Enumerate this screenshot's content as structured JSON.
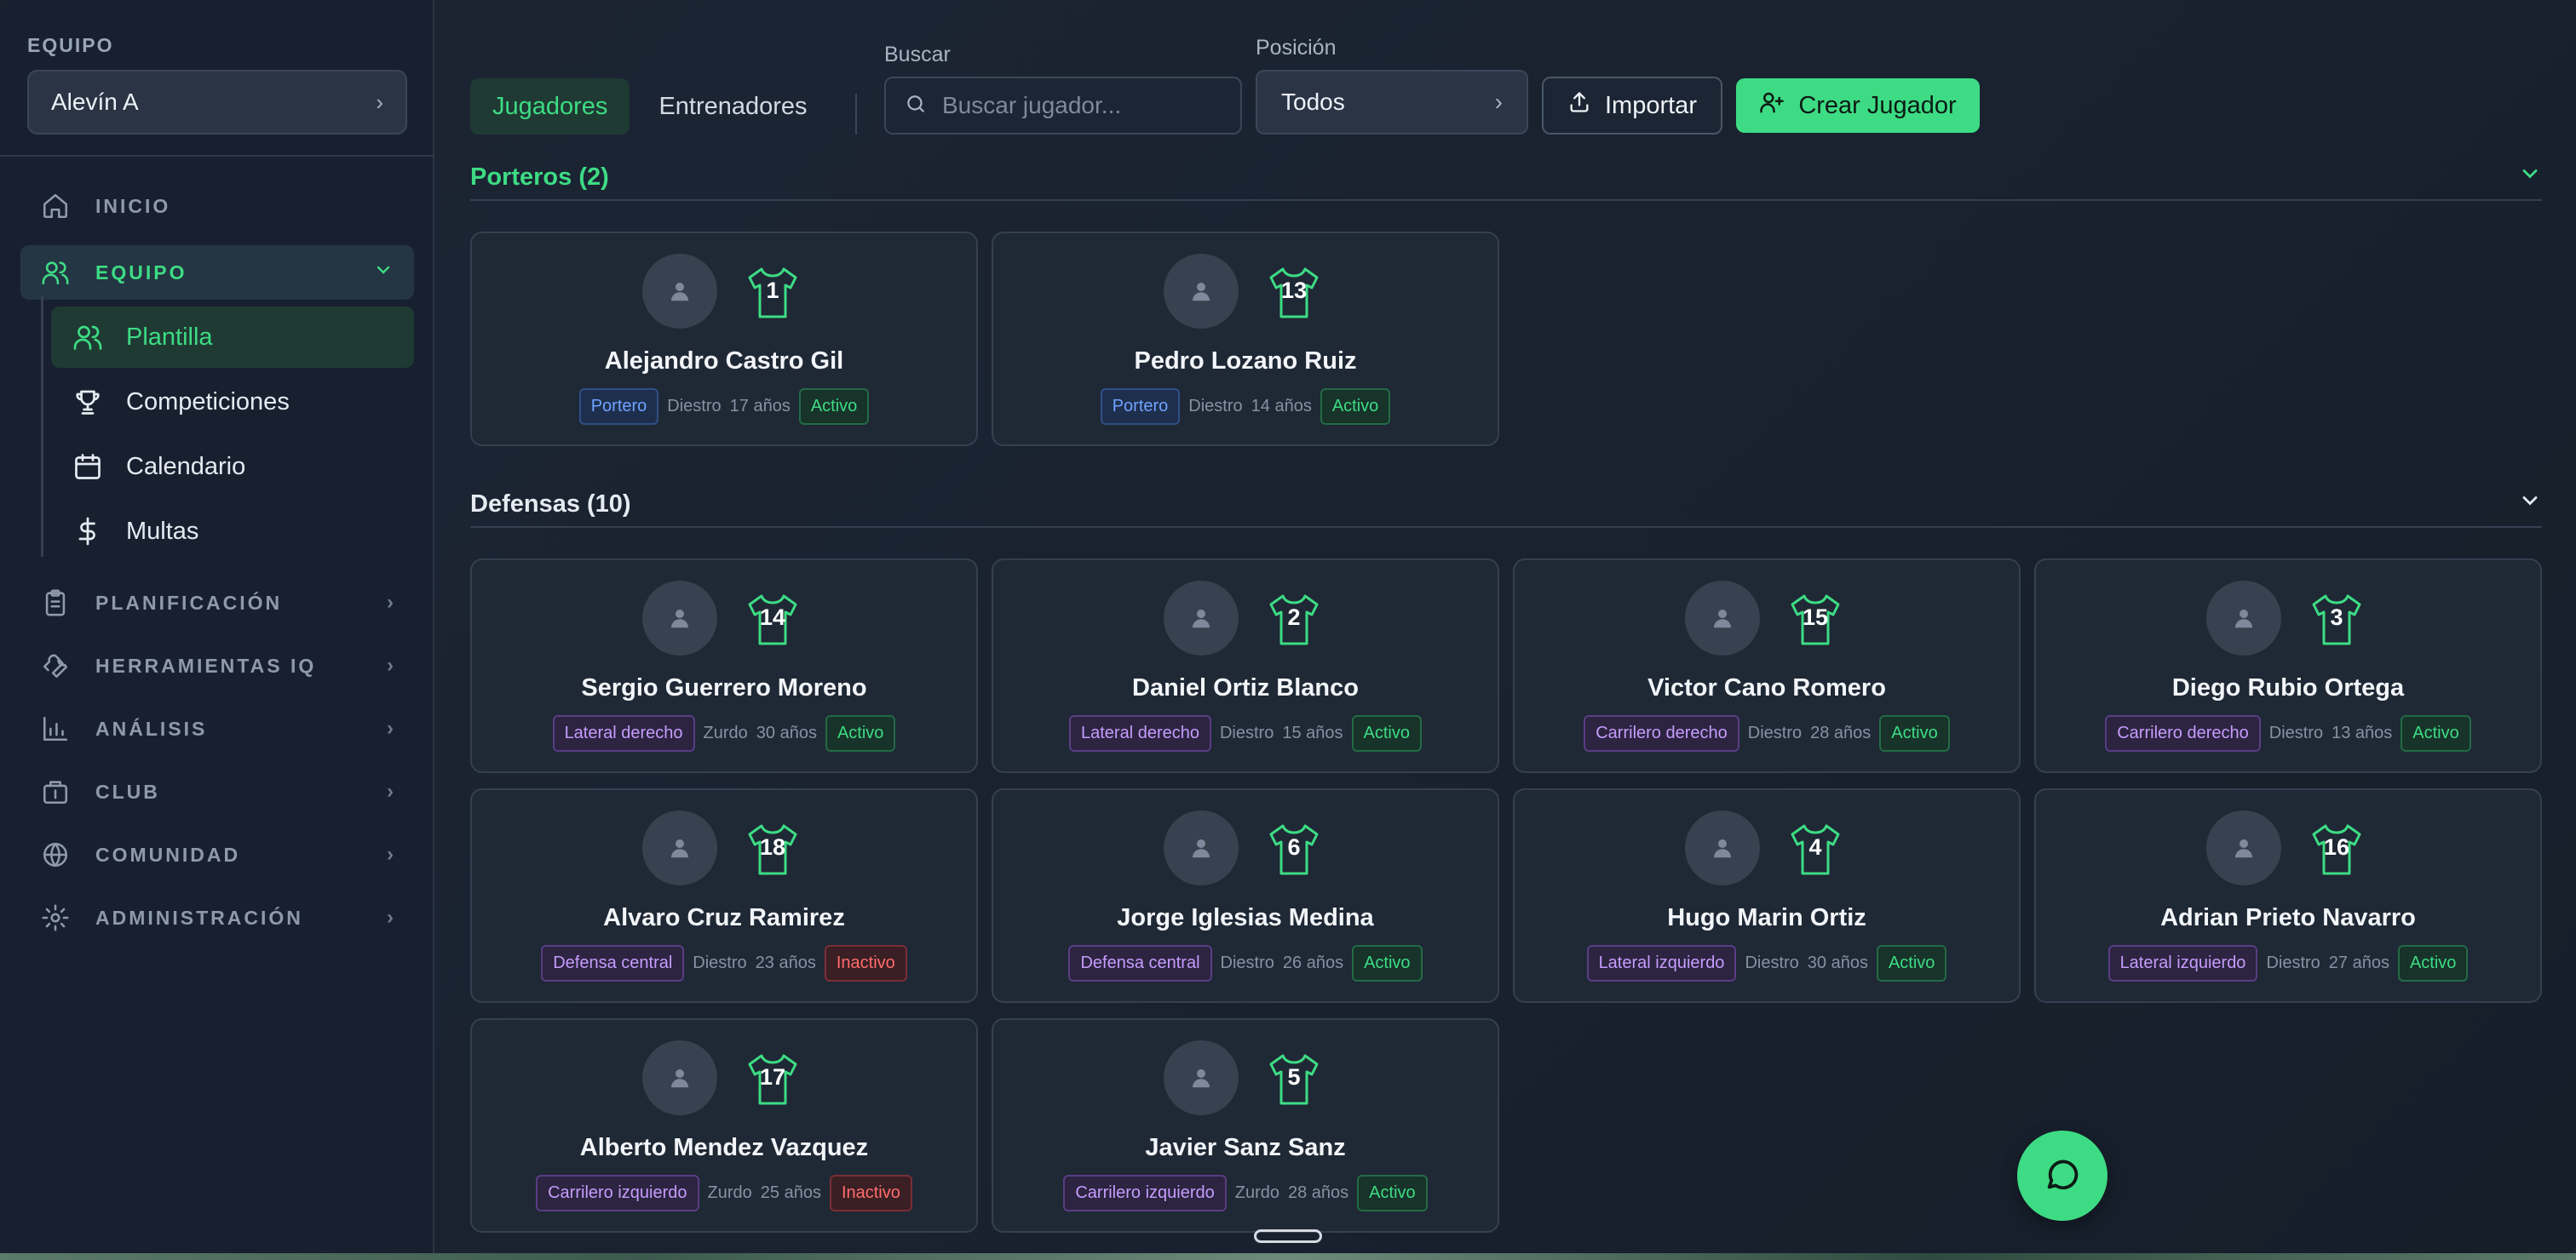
{
  "sidebar": {
    "team_label": "EQUIPO",
    "team_value": "Alevín A",
    "nav": {
      "inicio": "INICIO",
      "equipo": "EQUIPO",
      "planificacion": "PLANIFICACIÓN",
      "herramientas": "HERRAMIENTAS IQ",
      "analisis": "ANÁLISIS",
      "club": "CLUB",
      "comunidad": "COMUNIDAD",
      "administracion": "ADMINISTRACIÓN"
    },
    "sub": {
      "plantilla": "Plantilla",
      "competiciones": "Competiciones",
      "calendario": "Calendario",
      "multas": "Multas"
    }
  },
  "toolbar": {
    "tabs": [
      "Jugadores",
      "Entrenadores"
    ],
    "search_label": "Buscar",
    "search_placeholder": "Buscar jugador...",
    "position_label": "Posición",
    "position_value": "Todos",
    "import_label": "Importar",
    "create_label": "Crear Jugador"
  },
  "sections": {
    "porteros": "Porteros (2)",
    "defensas": "Defensas (10)"
  },
  "players": [
    {
      "number": "1",
      "name": "Alejandro Castro Gil",
      "position": "Portero",
      "foot": "Diestro",
      "age": "17 años",
      "status": "Activo"
    },
    {
      "number": "13",
      "name": "Pedro Lozano Ruiz",
      "position": "Portero",
      "foot": "Diestro",
      "age": "14 años",
      "status": "Activo"
    },
    {
      "number": "14",
      "name": "Sergio Guerrero Moreno",
      "position": "Lateral derecho",
      "foot": "Zurdo",
      "age": "30 años",
      "status": "Activo"
    },
    {
      "number": "2",
      "name": "Daniel Ortiz Blanco",
      "position": "Lateral derecho",
      "foot": "Diestro",
      "age": "15 años",
      "status": "Activo"
    },
    {
      "number": "15",
      "name": "Victor Cano Romero",
      "position": "Carrilero derecho",
      "foot": "Diestro",
      "age": "28 años",
      "status": "Activo"
    },
    {
      "number": "3",
      "name": "Diego Rubio Ortega",
      "position": "Carrilero derecho",
      "foot": "Diestro",
      "age": "13 años",
      "status": "Activo"
    },
    {
      "number": "18",
      "name": "Alvaro Cruz Ramirez",
      "position": "Defensa central",
      "foot": "Diestro",
      "age": "23 años",
      "status": "Inactivo"
    },
    {
      "number": "6",
      "name": "Jorge Iglesias Medina",
      "position": "Defensa central",
      "foot": "Diestro",
      "age": "26 años",
      "status": "Activo"
    },
    {
      "number": "4",
      "name": "Hugo Marin Ortiz",
      "position": "Lateral izquierdo",
      "foot": "Diestro",
      "age": "30 años",
      "status": "Activo"
    },
    {
      "number": "16",
      "name": "Adrian Prieto Navarro",
      "position": "Lateral izquierdo",
      "foot": "Diestro",
      "age": "27 años",
      "status": "Activo"
    },
    {
      "number": "17",
      "name": "Alberto Mendez Vazquez",
      "position": "Carrilero izquierdo",
      "foot": "Zurdo",
      "age": "25 años",
      "status": "Inactivo"
    },
    {
      "number": "5",
      "name": "Javier Sanz Sanz",
      "position": "Carrilero izquierdo",
      "foot": "Zurdo",
      "age": "28 años",
      "status": "Activo"
    }
  ],
  "colors": {
    "accent": "#3ddc84",
    "goalkeeper_badge": "#6ea3ff",
    "position_badge": "#c69cff",
    "inactive": "#ff6b6b"
  }
}
